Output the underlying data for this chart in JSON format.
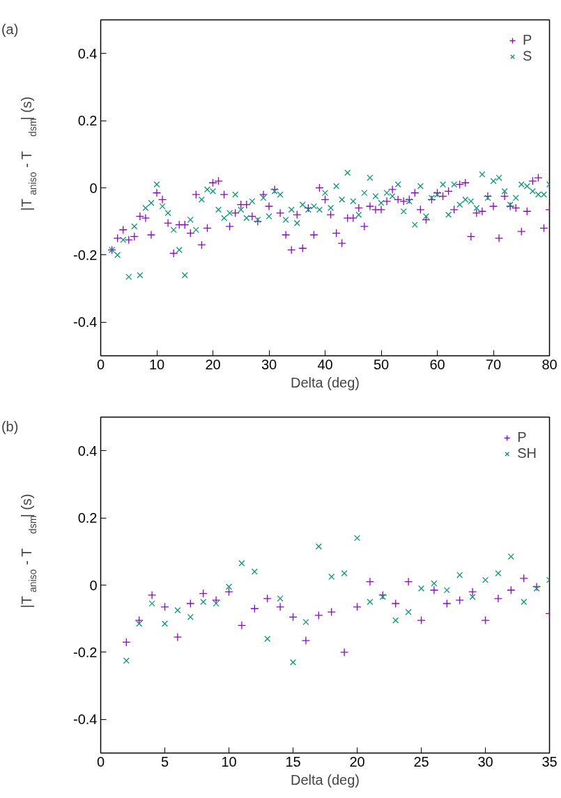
{
  "chart_data": [
    {
      "type": "scatter",
      "annotations": [
        "(a)"
      ],
      "xlabel": "Delta (deg)",
      "ylabel": "|T$_{aniso}$ - T$_{dsm}$| (s)",
      "xlim": [
        0,
        80
      ],
      "xticks": [
        0,
        10,
        20,
        30,
        40,
        50,
        60,
        70,
        80
      ],
      "ylim": [
        -0.5,
        0.5
      ],
      "yticks": [
        -0.4,
        -0.2,
        0,
        0.2,
        0.4
      ],
      "grid": false,
      "legend": "top right",
      "x": [
        2,
        3,
        4,
        5,
        6,
        7,
        8,
        9,
        10,
        11,
        12,
        13,
        14,
        15,
        16,
        17,
        18,
        19,
        20,
        21,
        22,
        23,
        24,
        25,
        26,
        27,
        28,
        29,
        30,
        31,
        32,
        33,
        34,
        35,
        36,
        37,
        38,
        39,
        40,
        41,
        42,
        43,
        44,
        45,
        46,
        47,
        48,
        49,
        50,
        51,
        52,
        53,
        54,
        55,
        56,
        57,
        58,
        59,
        60,
        61,
        62,
        63,
        64,
        65,
        66,
        67,
        68,
        69,
        70,
        71,
        72,
        73,
        74,
        75,
        76,
        77,
        78,
        79,
        80
      ],
      "series": [
        {
          "name": "P",
          "color": "#9400d3",
          "marker": "cross",
          "values": [
            -0.185,
            -0.15,
            -0.125,
            -0.155,
            -0.145,
            -0.085,
            -0.09,
            -0.14,
            -0.015,
            -0.035,
            -0.105,
            -0.195,
            -0.11,
            -0.11,
            -0.135,
            -0.02,
            -0.17,
            -0.12,
            0.015,
            0.02,
            -0.02,
            -0.115,
            -0.075,
            -0.05,
            -0.05,
            -0.085,
            -0.1,
            -0.02,
            -0.055,
            -0.005,
            -0.075,
            -0.14,
            -0.185,
            -0.08,
            -0.18,
            -0.06,
            -0.14,
            0.0,
            -0.035,
            -0.08,
            -0.135,
            -0.165,
            -0.09,
            -0.09,
            -0.06,
            -0.115,
            -0.055,
            -0.065,
            -0.065,
            -0.04,
            -0.005,
            -0.035,
            -0.04,
            -0.035,
            -0.015,
            -0.065,
            -0.095,
            -0.035,
            -0.015,
            -0.025,
            -0.01,
            -0.065,
            0.01,
            0.015,
            -0.145,
            -0.075,
            -0.07,
            -0.025,
            -0.055,
            -0.15,
            -0.025,
            -0.055,
            -0.06,
            -0.13,
            -0.07,
            0.02,
            0.03,
            -0.12,
            -0.065
          ]
        },
        {
          "name": "S",
          "color": "#009e73",
          "marker": "x",
          "values": [
            -0.185,
            -0.2,
            -0.155,
            -0.265,
            -0.115,
            -0.26,
            -0.06,
            -0.045,
            0.01,
            -0.055,
            -0.075,
            -0.125,
            -0.185,
            -0.26,
            -0.095,
            -0.125,
            -0.035,
            -0.005,
            -0.01,
            -0.065,
            -0.09,
            -0.075,
            -0.02,
            -0.065,
            -0.09,
            -0.04,
            -0.095,
            -0.03,
            -0.085,
            -0.01,
            -0.02,
            -0.095,
            -0.065,
            -0.105,
            -0.05,
            -0.065,
            -0.055,
            -0.065,
            -0.015,
            -0.06,
            0.005,
            -0.035,
            0.045,
            -0.04,
            -0.08,
            -0.015,
            0.03,
            -0.025,
            -0.045,
            -0.015,
            -0.025,
            0.01,
            -0.07,
            -0.04,
            -0.11,
            0.005,
            -0.085,
            -0.03,
            -0.02,
            0.01,
            -0.08,
            0.01,
            -0.05,
            -0.035,
            -0.04,
            -0.06,
            0.04,
            -0.03,
            0.02,
            0.03,
            -0.01,
            -0.05,
            -0.03,
            0.01,
            0.005,
            -0.01,
            -0.02,
            -0.02,
            0.01
          ]
        }
      ]
    },
    {
      "type": "scatter",
      "annotations": [
        "(b)"
      ],
      "xlabel": "Delta (deg)",
      "ylabel": "|T$_{aniso}$ - T$_{dsm}$| (s)",
      "xlim": [
        0,
        35
      ],
      "xticks": [
        0,
        5,
        10,
        15,
        20,
        25,
        30,
        35
      ],
      "ylim": [
        -0.5,
        0.5
      ],
      "yticks": [
        -0.4,
        -0.2,
        0,
        0.2,
        0.4
      ],
      "grid": false,
      "legend": "top right",
      "x": [
        2,
        3,
        4,
        5,
        6,
        7,
        8,
        9,
        10,
        11,
        12,
        13,
        14,
        15,
        16,
        17,
        18,
        19,
        20,
        21,
        22,
        23,
        24,
        25,
        26,
        27,
        28,
        29,
        30,
        31,
        32,
        33,
        34,
        35
      ],
      "series": [
        {
          "name": "P",
          "color": "#9400d3",
          "marker": "cross",
          "values": [
            -0.17,
            -0.105,
            -0.03,
            -0.065,
            -0.155,
            -0.055,
            -0.025,
            -0.045,
            -0.02,
            -0.12,
            -0.07,
            -0.04,
            -0.065,
            -0.095,
            -0.165,
            -0.09,
            -0.08,
            -0.2,
            -0.065,
            0.01,
            -0.03,
            -0.055,
            0.01,
            -0.105,
            -0.015,
            -0.055,
            -0.045,
            -0.02,
            -0.105,
            -0.04,
            -0.015,
            0.02,
            -0.005,
            -0.085
          ]
        },
        {
          "name": "SH",
          "color": "#009e73",
          "marker": "x",
          "values": [
            -0.225,
            -0.115,
            -0.055,
            -0.115,
            -0.075,
            -0.095,
            -0.05,
            -0.055,
            -0.005,
            0.065,
            0.04,
            -0.16,
            -0.04,
            -0.23,
            -0.11,
            0.115,
            0.025,
            0.035,
            0.14,
            -0.05,
            -0.035,
            -0.105,
            -0.08,
            -0.01,
            0.005,
            -0.015,
            0.03,
            -0.035,
            0.015,
            0.035,
            0.085,
            -0.05,
            -0.01,
            0.015
          ]
        }
      ]
    }
  ]
}
